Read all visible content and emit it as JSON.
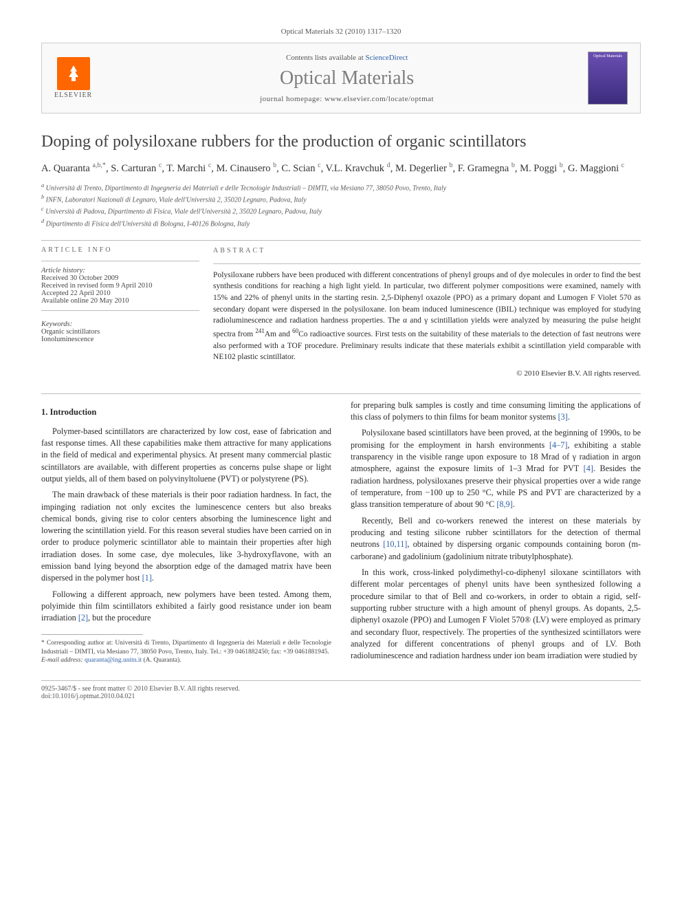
{
  "journal_ref": "Optical Materials 32 (2010) 1317–1320",
  "header": {
    "elsevier": "ELSEVIER",
    "contents": "Contents lists available at ",
    "contents_link": "ScienceDirect",
    "journal": "Optical Materials",
    "homepage": "journal homepage: www.elsevier.com/locate/optmat",
    "cover_label": "Optical Materials"
  },
  "title": "Doping of polysiloxane rubbers for the production of organic scintillators",
  "authors_html": "A. Quaranta <sup>a,b,*</sup>, S. Carturan <sup>c</sup>, T. Marchi <sup>c</sup>, M. Cinausero <sup>b</sup>, C. Scian <sup>c</sup>, V.L. Kravchuk <sup>d</sup>, M. Degerlier <sup>b</sup>, F. Gramegna <sup>b</sup>, M. Poggi <sup>b</sup>, G. Maggioni <sup>c</sup>",
  "affiliations": [
    "a Università di Trento, Dipartimento di Ingegneria dei Materiali e delle Tecnologie Industriali – DIMTI, via Mesiano 77, 38050 Povo, Trento, Italy",
    "b INFN, Laboratori Nazionali di Legnaro, Viale dell'Università 2, 35020 Legnaro, Padova, Italy",
    "c Università di Padova, Dipartimento di Fisica, Viale dell'Università 2, 35020 Legnaro, Padova, Italy",
    "d Dipartimento di Fisica dell'Università di Bologna, I-40126 Bologna, Italy"
  ],
  "article_info": {
    "label": "ARTICLE INFO",
    "history_h": "Article history:",
    "history": [
      "Received 30 October 2009",
      "Received in revised form 9 April 2010",
      "Accepted 22 April 2010",
      "Available online 20 May 2010"
    ],
    "keywords_h": "Keywords:",
    "keywords": [
      "Organic scintillators",
      "Ionoluminescence"
    ]
  },
  "abstract": {
    "label": "ABSTRACT",
    "text": "Polysiloxane rubbers have been produced with different concentrations of phenyl groups and of dye molecules in order to find the best synthesis conditions for reaching a high light yield. In particular, two different polymer compositions were examined, namely with 15% and 22% of phenyl units in the starting resin. 2,5-Diphenyl oxazole (PPO) as a primary dopant and Lumogen F Violet 570 as secondary dopant were dispersed in the polysiloxane. Ion beam induced luminescence (IBIL) technique was employed for studying radioluminescence and radiation hardness properties. The α and γ scintillation yields were analyzed by measuring the pulse height spectra from 241Am and 60Co radioactive sources. First tests on the suitability of these materials to the detection of fast neutrons were also performed with a TOF procedure. Preliminary results indicate that these materials exhibit a scintillation yield comparable with NE102 plastic scintillator.",
    "copyright": "© 2010 Elsevier B.V. All rights reserved."
  },
  "intro_h": "1. Introduction",
  "left_paras": [
    "Polymer-based scintillators are characterized by low cost, ease of fabrication and fast response times. All these capabilities make them attractive for many applications in the field of medical and experimental physics. At present many commercial plastic scintillators are available, with different properties as concerns pulse shape or light output yields, all of them based on polyvinyltoluene (PVT) or polystyrene (PS).",
    "The main drawback of these materials is their poor radiation hardness. In fact, the impinging radiation not only excites the luminescence centers but also breaks chemical bonds, giving rise to color centers absorbing the luminescence light and lowering the scintillation yield. For this reason several studies have been carried on in order to produce polymeric scintillator able to maintain their properties after high irradiation doses. In some case, dye molecules, like 3-hydroxyflavone, with an emission band lying beyond the absorption edge of the damaged matrix have been dispersed in the polymer host [1].",
    "Following a different approach, new polymers have been tested. Among them, polyimide thin film scintillators exhibited a fairly good resistance under ion beam irradiation [2], but the procedure"
  ],
  "right_paras": [
    "for preparing bulk samples is costly and time consuming limiting the applications of this class of polymers to thin films for beam monitor systems [3].",
    "Polysiloxane based scintillators have been proved, at the beginning of 1990s, to be promising for the employment in harsh environments [4–7], exhibiting a stable transparency in the visible range upon exposure to 18 Mrad of γ radiation in argon atmosphere, against the exposure limits of 1–3 Mrad for PVT [4]. Besides the radiation hardness, polysiloxanes preserve their physical properties over a wide range of temperature, from −100 up to 250 °C, while PS and PVT are characterized by a glass transition temperature of about 90 °C [8,9].",
    "Recently, Bell and co-workers renewed the interest on these materials by producing and testing silicone rubber scintillators for the detection of thermal neutrons [10,11], obtained by dispersing organic compounds containing boron (m-carborane) and gadolinium (gadolinium nitrate tributylphosphate).",
    "In this work, cross-linked polydimethyl-co-diphenyl siloxane scintillators with different molar percentages of phenyl units have been synthesized following a procedure similar to that of Bell and co-workers, in order to obtain a rigid, self-supporting rubber structure with a high amount of phenyl groups. As dopants, 2,5-diphenyl oxazole (PPO) and Lumogen F Violet 570® (LV) were employed as primary and secondary fluor, respectively. The properties of the synthesized scintillators were analyzed for different concentrations of phenyl groups and of LV. Both radioluminescence and radiation hardness under ion beam irradiation were studied by"
  ],
  "footnote": {
    "corr": "* Corresponding author at: Università di Trento, Dipartimento di Ingegneria dei Materiali e delle Tecnologie Industriali – DIMTI, via Mesiano 77, 38050 Povo, Trento, Italy. Tel.: +39 0461882450; fax: +39 0461881945.",
    "email_label": "E-mail address:",
    "email": "quaranta@ing.unitn.it",
    "email_who": "(A. Quaranta)."
  },
  "bottom": {
    "left1": "0925-3467/$ - see front matter © 2010 Elsevier B.V. All rights reserved.",
    "left2": "doi:10.1016/j.optmat.2010.04.021"
  },
  "colors": {
    "link": "#2c5fa8",
    "accent": "#ff6600",
    "cover_bg": "#4b3b94"
  }
}
